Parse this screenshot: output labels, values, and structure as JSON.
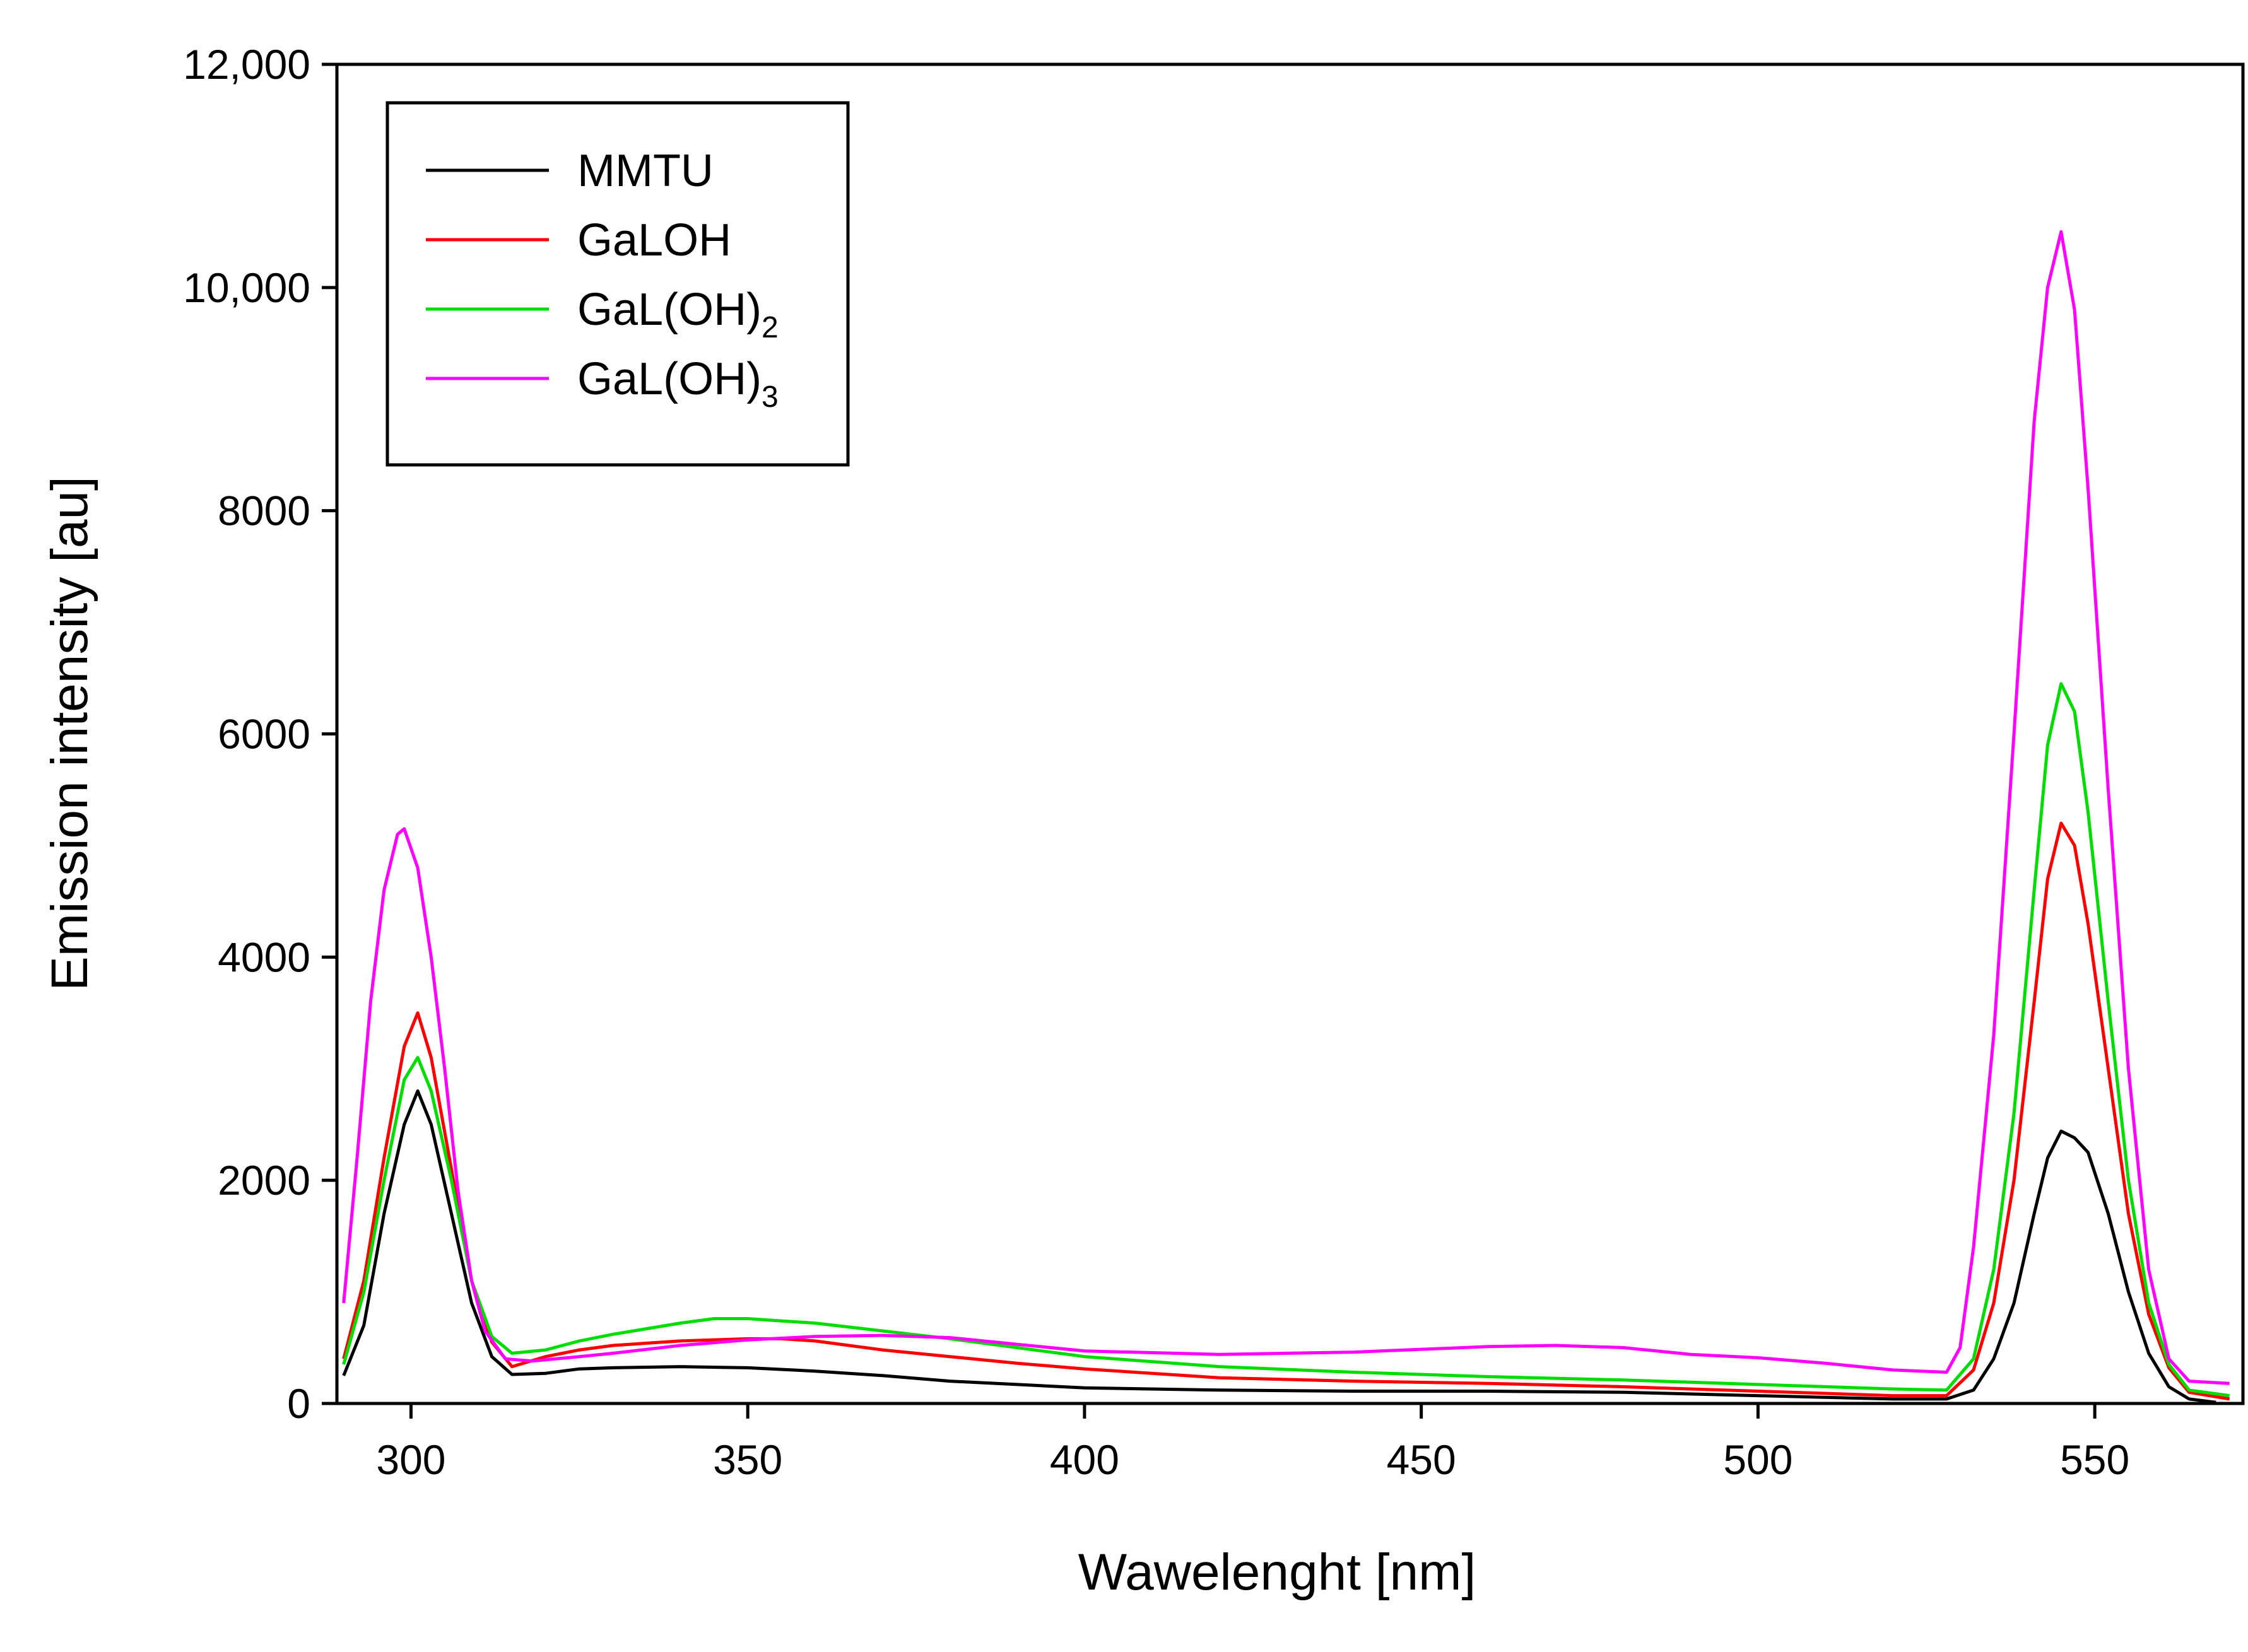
{
  "chart_data": {
    "type": "line",
    "title": "",
    "xlabel": "Wawelenght [nm]",
    "ylabel": "Emission intensity [au]",
    "xlim": [
      289,
      572
    ],
    "ylim": [
      0,
      12000
    ],
    "x_ticks": [
      {
        "value": 300,
        "label": "300"
      },
      {
        "value": 350,
        "label": "350"
      },
      {
        "value": 400,
        "label": "400"
      },
      {
        "value": 450,
        "label": "450"
      },
      {
        "value": 500,
        "label": "500"
      },
      {
        "value": 550,
        "label": "550"
      }
    ],
    "y_ticks": [
      {
        "value": 0,
        "label": "0"
      },
      {
        "value": 2000,
        "label": "2000"
      },
      {
        "value": 4000,
        "label": "4000"
      },
      {
        "value": 6000,
        "label": "6000"
      },
      {
        "value": 8000,
        "label": "8000"
      },
      {
        "value": 10000,
        "label": "10,000"
      },
      {
        "value": 12000,
        "label": "12,000"
      }
    ],
    "grid": false,
    "legend_position": "top-left",
    "series": [
      {
        "name": "MMTU",
        "legend_label": "MMTU",
        "legend_sub": "",
        "color": "#000000",
        "points": [
          [
            290,
            250
          ],
          [
            293,
            700
          ],
          [
            296,
            1700
          ],
          [
            299,
            2500
          ],
          [
            301,
            2800
          ],
          [
            303,
            2500
          ],
          [
            306,
            1700
          ],
          [
            309,
            900
          ],
          [
            312,
            420
          ],
          [
            315,
            260
          ],
          [
            320,
            270
          ],
          [
            325,
            310
          ],
          [
            330,
            320
          ],
          [
            340,
            330
          ],
          [
            350,
            320
          ],
          [
            360,
            290
          ],
          [
            370,
            250
          ],
          [
            380,
            200
          ],
          [
            390,
            170
          ],
          [
            400,
            140
          ],
          [
            420,
            120
          ],
          [
            440,
            110
          ],
          [
            460,
            110
          ],
          [
            480,
            100
          ],
          [
            500,
            70
          ],
          [
            520,
            40
          ],
          [
            528,
            40
          ],
          [
            532,
            120
          ],
          [
            535,
            400
          ],
          [
            538,
            900
          ],
          [
            541,
            1700
          ],
          [
            543,
            2200
          ],
          [
            545,
            2440
          ],
          [
            547,
            2380
          ],
          [
            549,
            2250
          ],
          [
            552,
            1700
          ],
          [
            555,
            1000
          ],
          [
            558,
            450
          ],
          [
            561,
            150
          ],
          [
            564,
            40
          ],
          [
            568,
            10
          ]
        ]
      },
      {
        "name": "GaLOH",
        "legend_label": "GaLOH",
        "legend_sub": "",
        "color": "#ff0000",
        "points": [
          [
            290,
            400
          ],
          [
            293,
            1100
          ],
          [
            296,
            2200
          ],
          [
            299,
            3200
          ],
          [
            301,
            3500
          ],
          [
            303,
            3100
          ],
          [
            306,
            2100
          ],
          [
            309,
            1100
          ],
          [
            312,
            550
          ],
          [
            315,
            330
          ],
          [
            320,
            420
          ],
          [
            325,
            480
          ],
          [
            330,
            520
          ],
          [
            340,
            560
          ],
          [
            350,
            580
          ],
          [
            355,
            580
          ],
          [
            360,
            560
          ],
          [
            370,
            480
          ],
          [
            380,
            420
          ],
          [
            390,
            360
          ],
          [
            400,
            310
          ],
          [
            420,
            230
          ],
          [
            440,
            200
          ],
          [
            460,
            180
          ],
          [
            480,
            150
          ],
          [
            500,
            110
          ],
          [
            520,
            70
          ],
          [
            528,
            70
          ],
          [
            532,
            300
          ],
          [
            535,
            900
          ],
          [
            538,
            2000
          ],
          [
            541,
            3600
          ],
          [
            543,
            4700
          ],
          [
            545,
            5200
          ],
          [
            547,
            5000
          ],
          [
            549,
            4300
          ],
          [
            552,
            3000
          ],
          [
            555,
            1700
          ],
          [
            558,
            800
          ],
          [
            561,
            320
          ],
          [
            564,
            100
          ],
          [
            570,
            40
          ]
        ]
      },
      {
        "name": "GaL(OH)2",
        "legend_label": "GaL(OH)",
        "legend_sub": "2",
        "color": "#00dd00",
        "points": [
          [
            290,
            350
          ],
          [
            293,
            1000
          ],
          [
            296,
            2000
          ],
          [
            299,
            2900
          ],
          [
            301,
            3100
          ],
          [
            303,
            2800
          ],
          [
            306,
            2000
          ],
          [
            309,
            1100
          ],
          [
            312,
            600
          ],
          [
            315,
            450
          ],
          [
            320,
            480
          ],
          [
            325,
            560
          ],
          [
            330,
            620
          ],
          [
            340,
            720
          ],
          [
            345,
            760
          ],
          [
            350,
            760
          ],
          [
            355,
            740
          ],
          [
            360,
            720
          ],
          [
            370,
            650
          ],
          [
            380,
            580
          ],
          [
            390,
            500
          ],
          [
            400,
            420
          ],
          [
            420,
            330
          ],
          [
            440,
            280
          ],
          [
            460,
            240
          ],
          [
            480,
            210
          ],
          [
            500,
            170
          ],
          [
            520,
            130
          ],
          [
            528,
            120
          ],
          [
            532,
            400
          ],
          [
            535,
            1200
          ],
          [
            538,
            2600
          ],
          [
            541,
            4600
          ],
          [
            543,
            5900
          ],
          [
            545,
            6450
          ],
          [
            547,
            6200
          ],
          [
            549,
            5300
          ],
          [
            552,
            3600
          ],
          [
            555,
            2000
          ],
          [
            558,
            900
          ],
          [
            561,
            350
          ],
          [
            564,
            120
          ],
          [
            570,
            70
          ]
        ]
      },
      {
        "name": "GaL(OH)3",
        "legend_label": "GaL(OH)",
        "legend_sub": "3",
        "color": "#ff00ff",
        "points": [
          [
            290,
            900
          ],
          [
            292,
            2200
          ],
          [
            294,
            3600
          ],
          [
            296,
            4600
          ],
          [
            298,
            5100
          ],
          [
            299,
            5150
          ],
          [
            301,
            4800
          ],
          [
            303,
            4000
          ],
          [
            305,
            3000
          ],
          [
            307,
            1900
          ],
          [
            309,
            1100
          ],
          [
            311,
            650
          ],
          [
            314,
            400
          ],
          [
            318,
            380
          ],
          [
            325,
            420
          ],
          [
            330,
            450
          ],
          [
            340,
            520
          ],
          [
            350,
            570
          ],
          [
            360,
            600
          ],
          [
            370,
            610
          ],
          [
            380,
            590
          ],
          [
            390,
            530
          ],
          [
            400,
            470
          ],
          [
            420,
            440
          ],
          [
            440,
            460
          ],
          [
            460,
            510
          ],
          [
            470,
            520
          ],
          [
            480,
            500
          ],
          [
            490,
            440
          ],
          [
            500,
            410
          ],
          [
            510,
            360
          ],
          [
            520,
            300
          ],
          [
            528,
            280
          ],
          [
            530,
            500
          ],
          [
            532,
            1400
          ],
          [
            535,
            3300
          ],
          [
            538,
            6000
          ],
          [
            541,
            8800
          ],
          [
            543,
            10000
          ],
          [
            545,
            10500
          ],
          [
            547,
            9800
          ],
          [
            549,
            8200
          ],
          [
            552,
            5500
          ],
          [
            555,
            3000
          ],
          [
            558,
            1200
          ],
          [
            561,
            400
          ],
          [
            564,
            200
          ],
          [
            570,
            180
          ]
        ]
      }
    ]
  }
}
